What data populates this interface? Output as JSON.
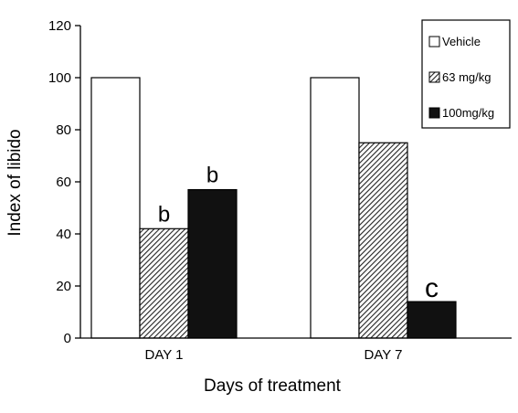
{
  "chart_data": {
    "type": "bar",
    "xlabel": "Days of treatment",
    "ylabel": "Index of libido",
    "ylim": [
      0,
      120
    ],
    "yticks": [
      0,
      20,
      40,
      60,
      80,
      100,
      120
    ],
    "categories": [
      "DAY  1",
      "DAY  7"
    ],
    "series": [
      {
        "name": "Vehicle",
        "pattern": "white",
        "values": [
          100,
          100
        ]
      },
      {
        "name": "63 mg/kg",
        "pattern": "hatched",
        "values": [
          42,
          75
        ]
      },
      {
        "name": "100mg/kg",
        "pattern": "black",
        "values": [
          57,
          14
        ]
      }
    ],
    "annotations": [
      {
        "text": "b",
        "category": 0,
        "series": 1
      },
      {
        "text": "b",
        "category": 0,
        "series": 2
      },
      {
        "text": "c",
        "category": 1,
        "series": 2
      }
    ],
    "legend_position": "top-right",
    "grid": false
  }
}
